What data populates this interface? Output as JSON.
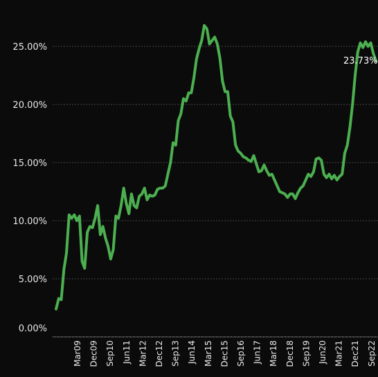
{
  "chart_data": {
    "type": "line",
    "title": "",
    "xlabel": "",
    "ylabel": "",
    "ylim": [
      0,
      27.5
    ],
    "y_ticks": [
      "0.00%",
      "5.00%",
      "10.00%",
      "15.00%",
      "20.00%",
      "25.00%"
    ],
    "y_tick_values": [
      0,
      5,
      10,
      15,
      20,
      25
    ],
    "x_ticks": [
      "Mar09",
      "Dec09",
      "Sep10",
      "Jun11",
      "Mar12",
      "Dec12",
      "Sep13",
      "Jun14",
      "Mar15",
      "Dec15",
      "Sep16",
      "Jun17",
      "Mar18",
      "Dec18",
      "Sep19",
      "Jun20",
      "Mar21",
      "Dec21",
      "Sep22"
    ],
    "grid": true,
    "line_color": "#4caf50",
    "end_label": "23.73%",
    "series": [
      {
        "values": [
          2.4,
          3.3,
          3.2,
          5.8,
          7.2,
          10.5,
          10.2,
          10.5,
          10.0,
          10.4,
          6.5,
          5.9,
          9.0,
          9.5,
          9.4,
          10.2,
          11.3,
          8.8,
          9.5,
          8.5,
          7.8,
          6.7,
          7.5,
          10.4,
          10.2,
          11.3,
          12.8,
          11.5,
          10.6,
          12.3,
          11.3,
          11.1,
          12.1,
          12.3,
          12.8,
          11.8,
          12.2,
          12.1,
          12.2,
          12.7,
          12.8,
          12.8,
          13.0,
          14.0,
          15.0,
          16.7,
          16.5,
          18.6,
          19.2,
          20.5,
          20.3,
          21.0,
          21.0,
          22.3,
          23.9,
          24.8,
          25.5,
          26.8,
          26.5,
          25.2,
          25.5,
          25.8,
          25.2,
          24.0,
          22.0,
          21.1,
          21.1,
          19.0,
          18.5,
          16.5,
          16.0,
          15.8,
          15.5,
          15.4,
          15.2,
          15.1,
          15.6,
          14.9,
          14.2,
          14.3,
          14.8,
          14.3,
          13.9,
          14.0,
          13.5,
          13.0,
          12.5,
          12.4,
          12.3,
          12.0,
          12.3,
          12.3,
          11.9,
          12.4,
          12.8,
          13.0,
          13.5,
          14.0,
          13.8,
          14.2,
          15.3,
          15.4,
          15.2,
          14.0,
          13.7,
          14.0,
          13.6,
          13.9,
          13.5,
          13.8,
          14.0,
          15.8,
          16.5,
          18.0,
          20.0,
          22.5,
          24.5,
          25.3,
          24.9,
          25.4,
          25.0,
          25.3,
          24.4,
          23.73
        ]
      }
    ]
  }
}
